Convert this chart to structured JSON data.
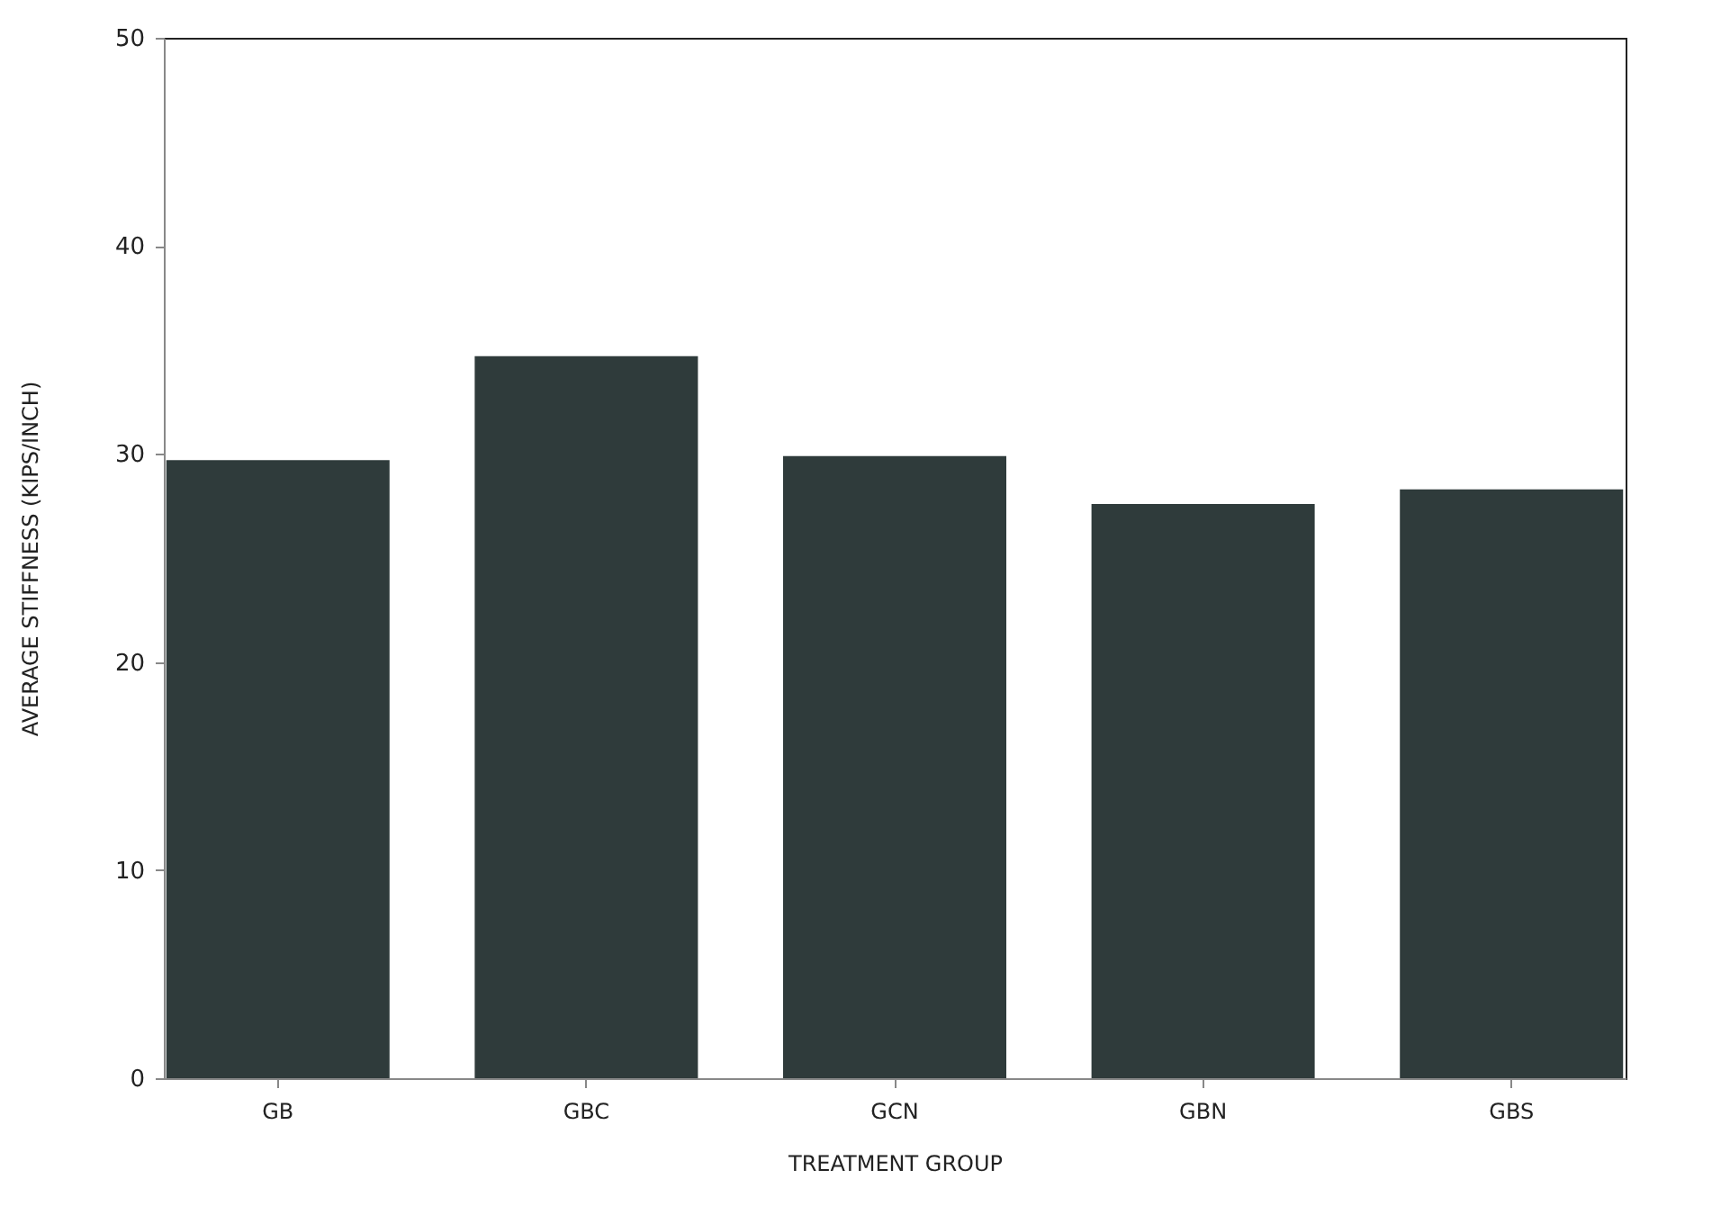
{
  "chart_data": {
    "type": "bar",
    "xlabel": "TREATMENT GROUP",
    "ylabel": "AVERAGE STIFFNESS (KIPS/INCH)",
    "categories": [
      "GB",
      "GBC",
      "GCN",
      "GBN",
      "GBS"
    ],
    "values": [
      29.7,
      34.7,
      29.9,
      27.6,
      28.3
    ],
    "color": "#2f3b3b",
    "ylim": [
      0,
      50
    ],
    "yticks": [
      0,
      10,
      20,
      30,
      40,
      50
    ],
    "grid": false
  }
}
